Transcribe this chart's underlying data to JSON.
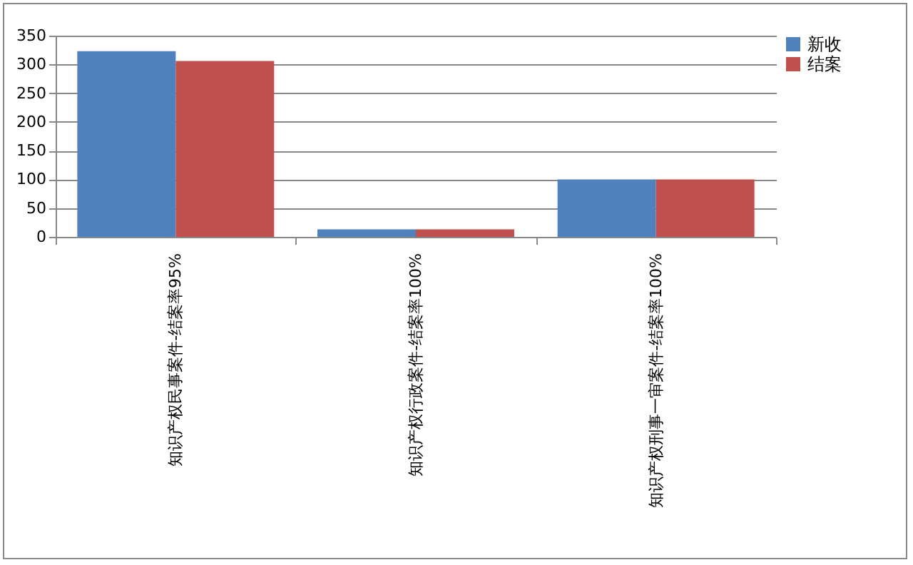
{
  "chart_data": {
    "type": "bar",
    "categories": [
      "知识产权民事案件-结案率95%",
      "知识产权行政案件-结案率100%",
      "知识产权刑事一审案件-结案率100%"
    ],
    "series": [
      {
        "name": "新收",
        "color": "#4f81bd",
        "values": [
          323,
          13,
          100
        ]
      },
      {
        "name": "结案",
        "color": "#c0504d",
        "values": [
          306,
          13,
          100
        ]
      }
    ],
    "ylim": [
      0,
      350
    ],
    "yticks": [
      0,
      50,
      100,
      150,
      200,
      250,
      300,
      350
    ],
    "grid": "y",
    "legend": "right"
  }
}
